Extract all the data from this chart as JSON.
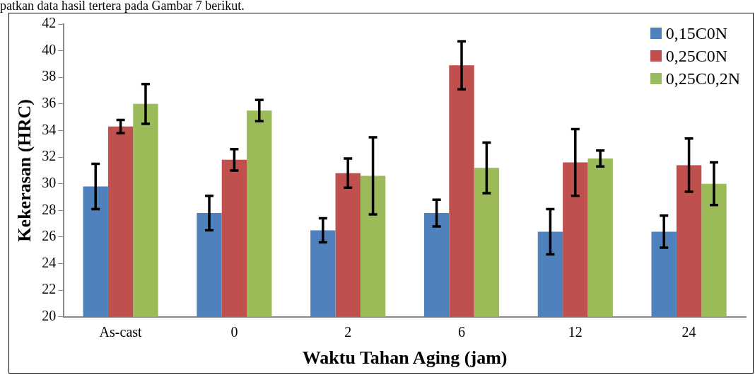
{
  "chart_data": {
    "type": "bar",
    "annotations": [
      "patkan data hasil tertera pada Gambar 7 berikut."
    ],
    "xlabel": "Waktu Tahan Aging (jam)",
    "ylabel": "Kekerasan (HRC)",
    "categories": [
      "As-cast",
      "0",
      "2",
      "6",
      "12",
      "24"
    ],
    "series": [
      {
        "name": "0,15C0N",
        "color": "#4f81bd",
        "values": [
          29.8,
          27.8,
          26.5,
          27.8,
          26.4,
          26.4
        ],
        "errors": [
          1.7,
          1.3,
          0.9,
          1.0,
          1.7,
          1.2
        ]
      },
      {
        "name": "0,25C0N",
        "color": "#c0504d",
        "values": [
          34.3,
          31.8,
          30.8,
          38.9,
          31.6,
          31.4
        ],
        "errors": [
          0.5,
          0.8,
          1.1,
          1.8,
          2.5,
          2.0
        ]
      },
      {
        "name": "0,25C0,2N",
        "color": "#9bbb59",
        "values": [
          36.0,
          35.5,
          30.6,
          31.2,
          31.9,
          30.0
        ],
        "errors": [
          1.5,
          0.8,
          2.9,
          1.9,
          0.6,
          1.6
        ]
      }
    ],
    "ylim": [
      20,
      42
    ],
    "yticks": [
      20,
      22,
      24,
      26,
      28,
      30,
      32,
      34,
      36,
      38,
      40,
      42
    ],
    "grid": false,
    "legend": "top right"
  }
}
